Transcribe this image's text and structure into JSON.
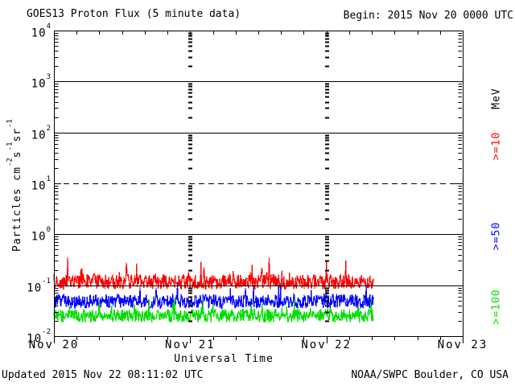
{
  "header": {
    "title": "GOES13 Proton Flux (5 minute data)",
    "begin_label": "Begin: 2015 Nov 20 0000 UTC"
  },
  "footer": {
    "updated": "Updated 2015 Nov 22 08:11:02 UTC",
    "source": "NOAA/SWPC Boulder, CO USA"
  },
  "chart_data": {
    "type": "line",
    "title": "GOES13 Proton Flux (5 minute data)",
    "xlabel": "Universal Time",
    "ylabel_segments": [
      {
        "text": "Particles cm",
        "sup": false
      },
      {
        "text": "-2",
        "sup": true
      },
      {
        "text": "s",
        "sup": false
      },
      {
        "text": "-1",
        "sup": true
      },
      {
        "text": "sr",
        "sup": false
      },
      {
        "text": "-1",
        "sup": true
      }
    ],
    "x_tick_labels": [
      "Nov 20",
      "Nov 21",
      "Nov 22",
      "Nov 23"
    ],
    "x_start": "2015 Nov 20 0000 UTC",
    "x_range_days": 3,
    "sample_interval_minutes": 5,
    "ylog": true,
    "ylim": [
      0.01,
      10000
    ],
    "y_tick_base": "10",
    "y_tick_exponents": [
      4,
      3,
      2,
      1,
      0,
      -1,
      -2
    ],
    "grid": {
      "solid_hlines": [
        1000,
        100,
        1,
        0.1
      ],
      "dashed_hlines": [
        10
      ],
      "dotted_vlines_days": [
        1,
        2
      ]
    },
    "right_axis": {
      "unit_label": "MeV",
      "unit_color": "#000000"
    },
    "series": [
      {
        "label": ">=10",
        "energy": ">=10 MeV",
        "color": "#ff0000",
        "data_end_day": 2.347,
        "flux_summary": {
          "min": 0.074,
          "median": 0.12,
          "max": 0.37
        },
        "noise_model": {
          "seed": 20151122,
          "center_log10": -0.93,
          "spread_log10": 0.15,
          "spike_prob": 0.07,
          "spike_amp_log10": 0.38,
          "clip_log10": [
            -1.13,
            -0.43
          ]
        }
      },
      {
        "label": ">=50",
        "energy": ">=50 MeV",
        "color": "#0000ff",
        "data_end_day": 2.347,
        "flux_summary": {
          "min": 0.028,
          "median": 0.048,
          "max": 0.105
        },
        "noise_model": {
          "seed": 5077,
          "center_log10": -1.32,
          "spread_log10": 0.14,
          "spike_prob": 0.06,
          "spike_amp_log10": 0.3,
          "clip_log10": [
            -1.56,
            -0.98
          ]
        }
      },
      {
        "label": ">=100",
        "energy": ">=100 MeV",
        "color": "#00dd00",
        "data_end_day": 2.347,
        "flux_summary": {
          "min": 0.017,
          "median": 0.025,
          "max": 0.07
        },
        "noise_model": {
          "seed": 100123,
          "center_log10": -1.6,
          "spread_log10": 0.13,
          "spike_prob": 0.05,
          "spike_amp_log10": 0.3,
          "clip_log10": [
            -1.78,
            -1.12
          ]
        }
      }
    ]
  }
}
